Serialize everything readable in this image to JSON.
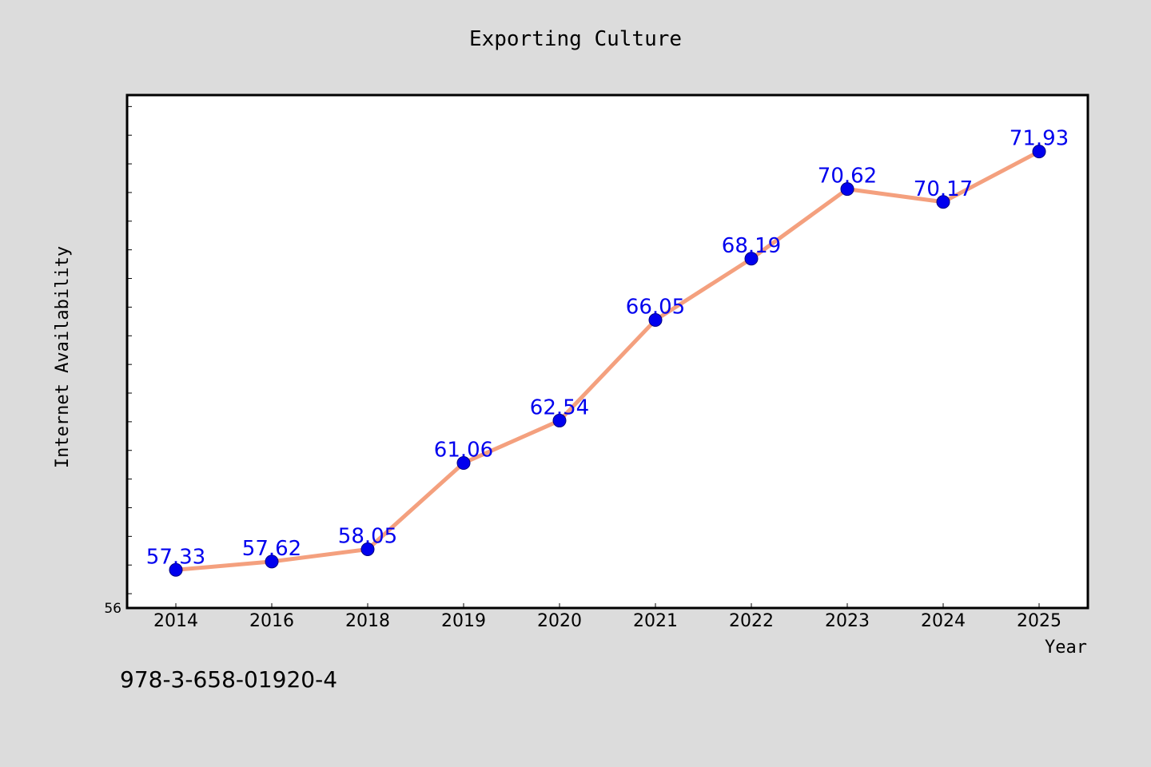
{
  "chart_data": {
    "type": "line",
    "title": "Exporting Culture",
    "xlabel": "Year",
    "ylabel": "Internet Availability",
    "categories": [
      "2014",
      "2016",
      "2018",
      "2019",
      "2020",
      "2021",
      "2022",
      "2023",
      "2024",
      "2025"
    ],
    "series": [
      {
        "values": [
          57.33,
          57.62,
          58.05,
          61.06,
          62.54,
          66.05,
          68.19,
          70.62,
          70.17,
          71.93
        ],
        "line_color": "#f4a07e",
        "marker_color": "#0000ee",
        "label_color": "#0000ee"
      }
    ],
    "ylim": [
      56,
      73.9
    ],
    "y_tick_labels": [
      "56"
    ],
    "grid": false,
    "legend": "none"
  },
  "footer": {
    "code": "978-3-658-01920-4"
  }
}
